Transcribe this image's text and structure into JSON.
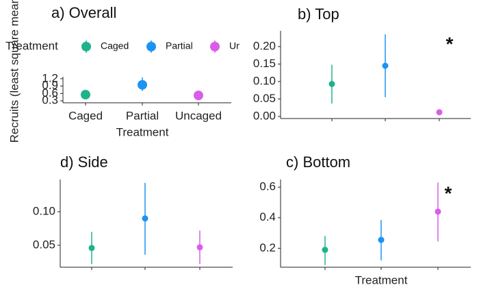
{
  "chart_data": [
    {
      "type": "pointrange",
      "title": "a) Overall",
      "x_label": "Treatment",
      "y_label": "Recruits (least square means)",
      "legend_title": "Treatment",
      "legend": true,
      "categories": [
        "Caged",
        "Partial",
        "Uncaged"
      ],
      "colors": [
        "#1fb28c",
        "#1b93f2",
        "#d95de8"
      ],
      "values": [
        0.55,
        0.95,
        0.52
      ],
      "lower": [
        0.4,
        0.7,
        0.4
      ],
      "upper": [
        0.7,
        1.25,
        0.65
      ],
      "ylim": [
        0.22,
        1.28
      ],
      "yticks": [
        0.3,
        0.6,
        0.9,
        1.2
      ],
      "xtick_labels": true
    },
    {
      "type": "pointrange",
      "title": "b) Top",
      "annotation": "*",
      "categories": [
        "Caged",
        "Partial",
        "Uncaged"
      ],
      "colors": [
        "#1fb28c",
        "#1b93f2",
        "#d95de8"
      ],
      "values": [
        0.093,
        0.145,
        0.012
      ],
      "lower": [
        0.037,
        0.055,
        0.012
      ],
      "upper": [
        0.148,
        0.235,
        0.012
      ],
      "ylim": [
        -0.006,
        0.245
      ],
      "yticks": [
        {
          "value": 0,
          "label": "0.00"
        },
        0.05,
        {
          "value": 0.1,
          "label": "0.10"
        },
        0.15,
        {
          "value": 0.2,
          "label": "0.20"
        }
      ]
    },
    {
      "type": "pointrange",
      "title": "d) Side",
      "categories": [
        "Caged",
        "Partial",
        "Uncaged"
      ],
      "colors": [
        "#1fb28c",
        "#1b93f2",
        "#d95de8"
      ],
      "values": [
        0.046,
        0.09,
        0.047
      ],
      "lower": [
        0.022,
        0.036,
        0.022
      ],
      "upper": [
        0.07,
        0.143,
        0.072
      ],
      "ylim": [
        0.0173,
        0.148
      ],
      "yticks": [
        0.05,
        {
          "value": 0.1,
          "label": "0.10"
        }
      ]
    },
    {
      "type": "pointrange",
      "title": "c) Bottom",
      "annotation": "*",
      "x_label": "Treatment",
      "categories": [
        "Caged",
        "Partial",
        "Uncaged"
      ],
      "colors": [
        "#1fb28c",
        "#1b93f2",
        "#d95de8"
      ],
      "values": [
        0.19,
        0.255,
        0.44
      ],
      "lower": [
        0.09,
        0.12,
        0.245
      ],
      "upper": [
        0.28,
        0.385,
        0.63
      ],
      "ylim": [
        0.076,
        0.65
      ],
      "yticks": [
        0.2,
        0.4,
        0.6
      ]
    }
  ]
}
